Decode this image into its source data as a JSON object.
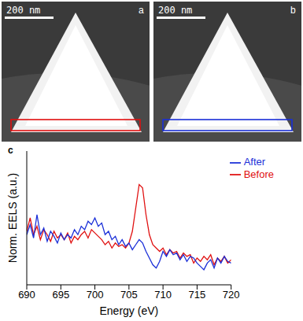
{
  "panels": [
    {
      "letter": "a",
      "scale_bar": "200 nm",
      "color": "#e01010"
    },
    {
      "letter": "b",
      "scale_bar": "200 nm",
      "color": "#1a2fd8"
    }
  ],
  "chart_data": {
    "letter": "c",
    "type": "line",
    "xlabel": "Energy (eV)",
    "ylabel": "Norm. EELS (a.u.)",
    "xlim": [
      690,
      720
    ],
    "xticks": [
      690,
      695,
      700,
      705,
      710,
      715,
      720
    ],
    "ylim": [
      0.2,
      1.0
    ],
    "tick_labels": "x",
    "legend": "upper right",
    "x": [
      690,
      690.5,
      691,
      691.5,
      692,
      692.5,
      693,
      693.5,
      694,
      694.5,
      695,
      695.5,
      696,
      696.5,
      697,
      697.5,
      698,
      698.5,
      699,
      699.5,
      700,
      700.5,
      701,
      701.5,
      702,
      702.5,
      703,
      703.5,
      704,
      704.5,
      705,
      705.5,
      706,
      706.5,
      707,
      707.5,
      708,
      708.5,
      709,
      709.5,
      710,
      710.5,
      711,
      711.5,
      712,
      712.5,
      713,
      713.5,
      714,
      714.5,
      715,
      715.5,
      716,
      716.5,
      717,
      717.5,
      718,
      718.5,
      719,
      719.5,
      720
    ],
    "series": [
      {
        "name": "Before",
        "color": "#e01010",
        "values": [
          0.52,
          0.6,
          0.5,
          0.55,
          0.47,
          0.53,
          0.5,
          0.46,
          0.52,
          0.48,
          0.5,
          0.47,
          0.51,
          0.45,
          0.49,
          0.47,
          0.5,
          0.52,
          0.48,
          0.53,
          0.51,
          0.49,
          0.47,
          0.44,
          0.46,
          0.42,
          0.45,
          0.43,
          0.44,
          0.42,
          0.45,
          0.52,
          0.66,
          0.8,
          0.78,
          0.62,
          0.5,
          0.44,
          0.42,
          0.4,
          0.42,
          0.38,
          0.41,
          0.39,
          0.4,
          0.36,
          0.39,
          0.37,
          0.38,
          0.33,
          0.36,
          0.34,
          0.37,
          0.35,
          0.38,
          0.32,
          0.36,
          0.34,
          0.37,
          0.33,
          0.35
        ]
      },
      {
        "name": "After",
        "color": "#1a2fd8",
        "values": [
          0.5,
          0.56,
          0.48,
          0.62,
          0.5,
          0.54,
          0.46,
          0.52,
          0.49,
          0.45,
          0.51,
          0.47,
          0.5,
          0.48,
          0.53,
          0.5,
          0.55,
          0.53,
          0.58,
          0.56,
          0.6,
          0.55,
          0.57,
          0.5,
          0.52,
          0.47,
          0.49,
          0.44,
          0.47,
          0.43,
          0.45,
          0.41,
          0.44,
          0.47,
          0.45,
          0.4,
          0.36,
          0.32,
          0.3,
          0.34,
          0.4,
          0.37,
          0.41,
          0.38,
          0.39,
          0.35,
          0.38,
          0.34,
          0.37,
          0.36,
          0.33,
          0.31,
          0.29,
          0.33,
          0.35,
          0.3,
          0.36,
          0.33,
          0.37,
          0.34,
          0.33
        ]
      }
    ]
  }
}
